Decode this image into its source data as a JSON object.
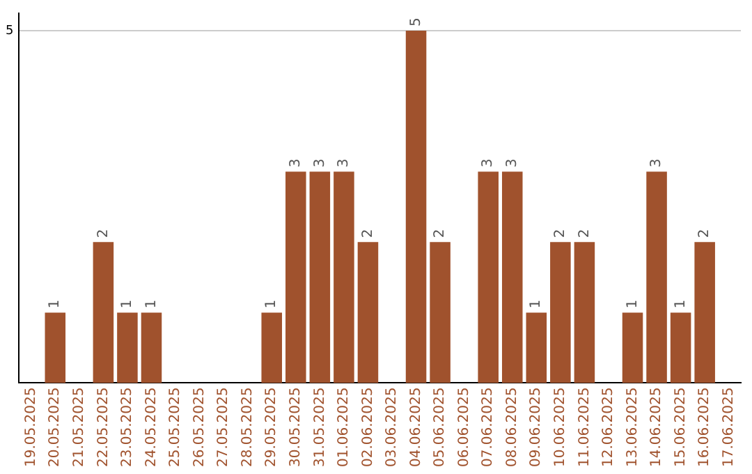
{
  "chart_data": {
    "type": "bar",
    "categories": [
      "19.05.2025",
      "20.05.2025",
      "21.05.2025",
      "22.05.2025",
      "23.05.2025",
      "24.05.2025",
      "25.05.2025",
      "26.05.2025",
      "27.05.2025",
      "28.05.2025",
      "29.05.2025",
      "30.05.2025",
      "31.05.2025",
      "01.06.2025",
      "02.06.2025",
      "03.06.2025",
      "04.06.2025",
      "05.06.2025",
      "06.06.2025",
      "07.06.2025",
      "08.06.2025",
      "09.06.2025",
      "10.06.2025",
      "11.06.2025",
      "12.06.2025",
      "13.06.2025",
      "14.06.2025",
      "15.06.2025",
      "16.06.2025",
      "17.06.2025"
    ],
    "values": [
      0,
      1,
      0,
      2,
      1,
      1,
      0,
      0,
      0,
      0,
      1,
      3,
      3,
      3,
      2,
      0,
      5,
      2,
      0,
      3,
      3,
      1,
      2,
      2,
      0,
      1,
      3,
      1,
      2,
      0
    ],
    "value_labels": [
      null,
      "1",
      null,
      "2",
      "1",
      "1",
      null,
      null,
      null,
      null,
      "1",
      "3",
      "3",
      "3",
      "2",
      null,
      "5",
      "2",
      null,
      "3",
      "3",
      "1",
      "2",
      "2",
      null,
      "1",
      "3",
      "1",
      "2",
      null
    ],
    "color": "#a0522d",
    "ylim": [
      0,
      5.25
    ],
    "yticks": [
      5
    ],
    "grid": "y",
    "legend": false
  }
}
